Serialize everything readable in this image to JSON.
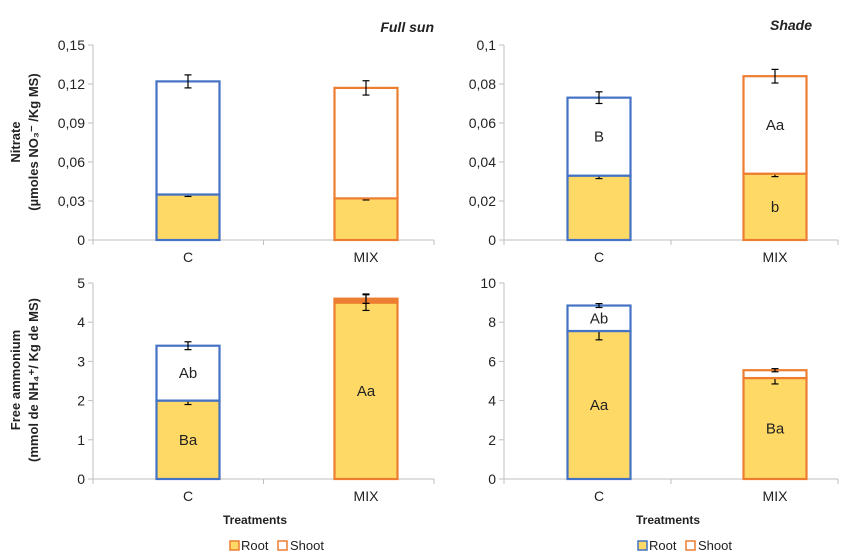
{
  "chart_data": [
    {
      "type": "bar",
      "stacked": true,
      "title": "Full sun",
      "xlabel": "",
      "ylabel": "",
      "categories": [
        "C",
        "MIX"
      ],
      "ylim": [
        0,
        0.15
      ],
      "ytick_labels": [
        "0",
        "0,03",
        "0,06",
        "0,09",
        "0,12",
        "0,15"
      ],
      "ytick_values": [
        0,
        0.03,
        0.06,
        0.09,
        0.12,
        0.15
      ],
      "segments": [
        {
          "category": "C",
          "bottom": 0,
          "top": 0.035,
          "edge": "#4472C4",
          "fill": "#FFD966",
          "error": 0.0015,
          "label": ""
        },
        {
          "category": "C",
          "bottom": 0.035,
          "top": 0.122,
          "edge": "#4472C4",
          "fill": "#ffffff",
          "error": 0.005,
          "label": ""
        },
        {
          "category": "MIX",
          "bottom": 0,
          "top": 0.032,
          "edge": "#ED7D31",
          "fill": "#FFD966",
          "error": 0.0012,
          "label": ""
        },
        {
          "category": "MIX",
          "bottom": 0.032,
          "top": 0.117,
          "edge": "#ED7D31",
          "fill": "#ffffff",
          "error": 0.0055,
          "label": ""
        }
      ]
    },
    {
      "type": "bar",
      "stacked": true,
      "title": "Shade",
      "xlabel": "",
      "ylabel": "",
      "categories": [
        "C",
        "MIX"
      ],
      "ylim": [
        0,
        0.1
      ],
      "ytick_labels": [
        "0",
        "0,02",
        "0,04",
        "0,06",
        "0,08",
        "0,1"
      ],
      "ytick_values": [
        0,
        0.02,
        0.04,
        0.06,
        0.08,
        0.1
      ],
      "segments": [
        {
          "category": "C",
          "bottom": 0,
          "top": 0.033,
          "edge": "#4472C4",
          "fill": "#FFD966",
          "error": 0.0015,
          "label": ""
        },
        {
          "category": "C",
          "bottom": 0.033,
          "top": 0.073,
          "edge": "#4472C4",
          "fill": "#ffffff",
          "error": 0.003,
          "label": "B"
        },
        {
          "category": "MIX",
          "bottom": 0,
          "top": 0.034,
          "edge": "#ED7D31",
          "fill": "#FFD966",
          "error": 0.0015,
          "label": "b"
        },
        {
          "category": "MIX",
          "bottom": 0.034,
          "top": 0.084,
          "edge": "#ED7D31",
          "fill": "#ffffff",
          "error": 0.0035,
          "label": "Aa"
        }
      ]
    },
    {
      "type": "bar",
      "stacked": true,
      "title": "",
      "xlabel": "Treatments",
      "ylabel": "",
      "categories": [
        "C",
        "MIX"
      ],
      "ylim": [
        0,
        5
      ],
      "ytick_labels": [
        "0",
        "1",
        "2",
        "3",
        "4",
        "5"
      ],
      "ytick_values": [
        0,
        1,
        2,
        3,
        4,
        5
      ],
      "segments": [
        {
          "category": "C",
          "bottom": 0,
          "top": 2.0,
          "edge": "#4472C4",
          "fill": "#FFD966",
          "error": 0.1,
          "label": "Ba"
        },
        {
          "category": "C",
          "bottom": 2.0,
          "top": 3.4,
          "edge": "#4472C4",
          "fill": "#ffffff",
          "error": 0.1,
          "label": "Ab"
        },
        {
          "category": "MIX",
          "bottom": 0,
          "top": 4.5,
          "edge": "#ED7D31",
          "fill": "#FFD966",
          "error": 0.2,
          "label": "Aa"
        },
        {
          "category": "MIX",
          "bottom": 4.5,
          "top": 4.6,
          "edge": "#ED7D31",
          "fill": "#ED7D31",
          "error": 0.12,
          "label": ""
        }
      ]
    },
    {
      "type": "bar",
      "stacked": true,
      "title": "",
      "xlabel": "Treatments",
      "ylabel": "",
      "categories": [
        "C",
        "MIX"
      ],
      "ylim": [
        0,
        10
      ],
      "ytick_labels": [
        "0",
        "2",
        "4",
        "6",
        "8",
        "10"
      ],
      "ytick_values": [
        0,
        2,
        4,
        6,
        8,
        10
      ],
      "segments": [
        {
          "category": "C",
          "bottom": 0,
          "top": 7.55,
          "edge": "#4472C4",
          "fill": "#FFD966",
          "error": 0.45,
          "label": "Aa"
        },
        {
          "category": "C",
          "bottom": 7.55,
          "top": 8.85,
          "edge": "#4472C4",
          "fill": "#ffffff",
          "error": 0.1,
          "label": "Ab"
        },
        {
          "category": "MIX",
          "bottom": 0,
          "top": 5.15,
          "edge": "#ED7D31",
          "fill": "#FFD966",
          "error": 0.3,
          "label": "Ba"
        },
        {
          "category": "MIX",
          "bottom": 5.15,
          "top": 5.55,
          "edge": "#ED7D31",
          "fill": "#ffffff",
          "error": 0.08,
          "label": ""
        }
      ]
    }
  ],
  "ylabels": {
    "top_line1": "Nitrate",
    "top_line2": "(µmoles NO₃⁻ /Kg MS)",
    "bottom_line1": "Free ammonium",
    "bottom_line2": "(mmol de NH₄⁺/ Kg de MS)"
  },
  "legends": [
    {
      "items": [
        {
          "label": "Root",
          "fill": "#FFD966",
          "edge": "#ED7D31"
        },
        {
          "label": "Shoot",
          "fill": "#ffffff",
          "edge": "#ED7D31"
        }
      ]
    },
    {
      "items": [
        {
          "label": "Root",
          "fill": "#FFD966",
          "edge": "#4472C4"
        },
        {
          "label": "Shoot",
          "fill": "#ffffff",
          "edge": "#ED7D31"
        }
      ]
    }
  ]
}
